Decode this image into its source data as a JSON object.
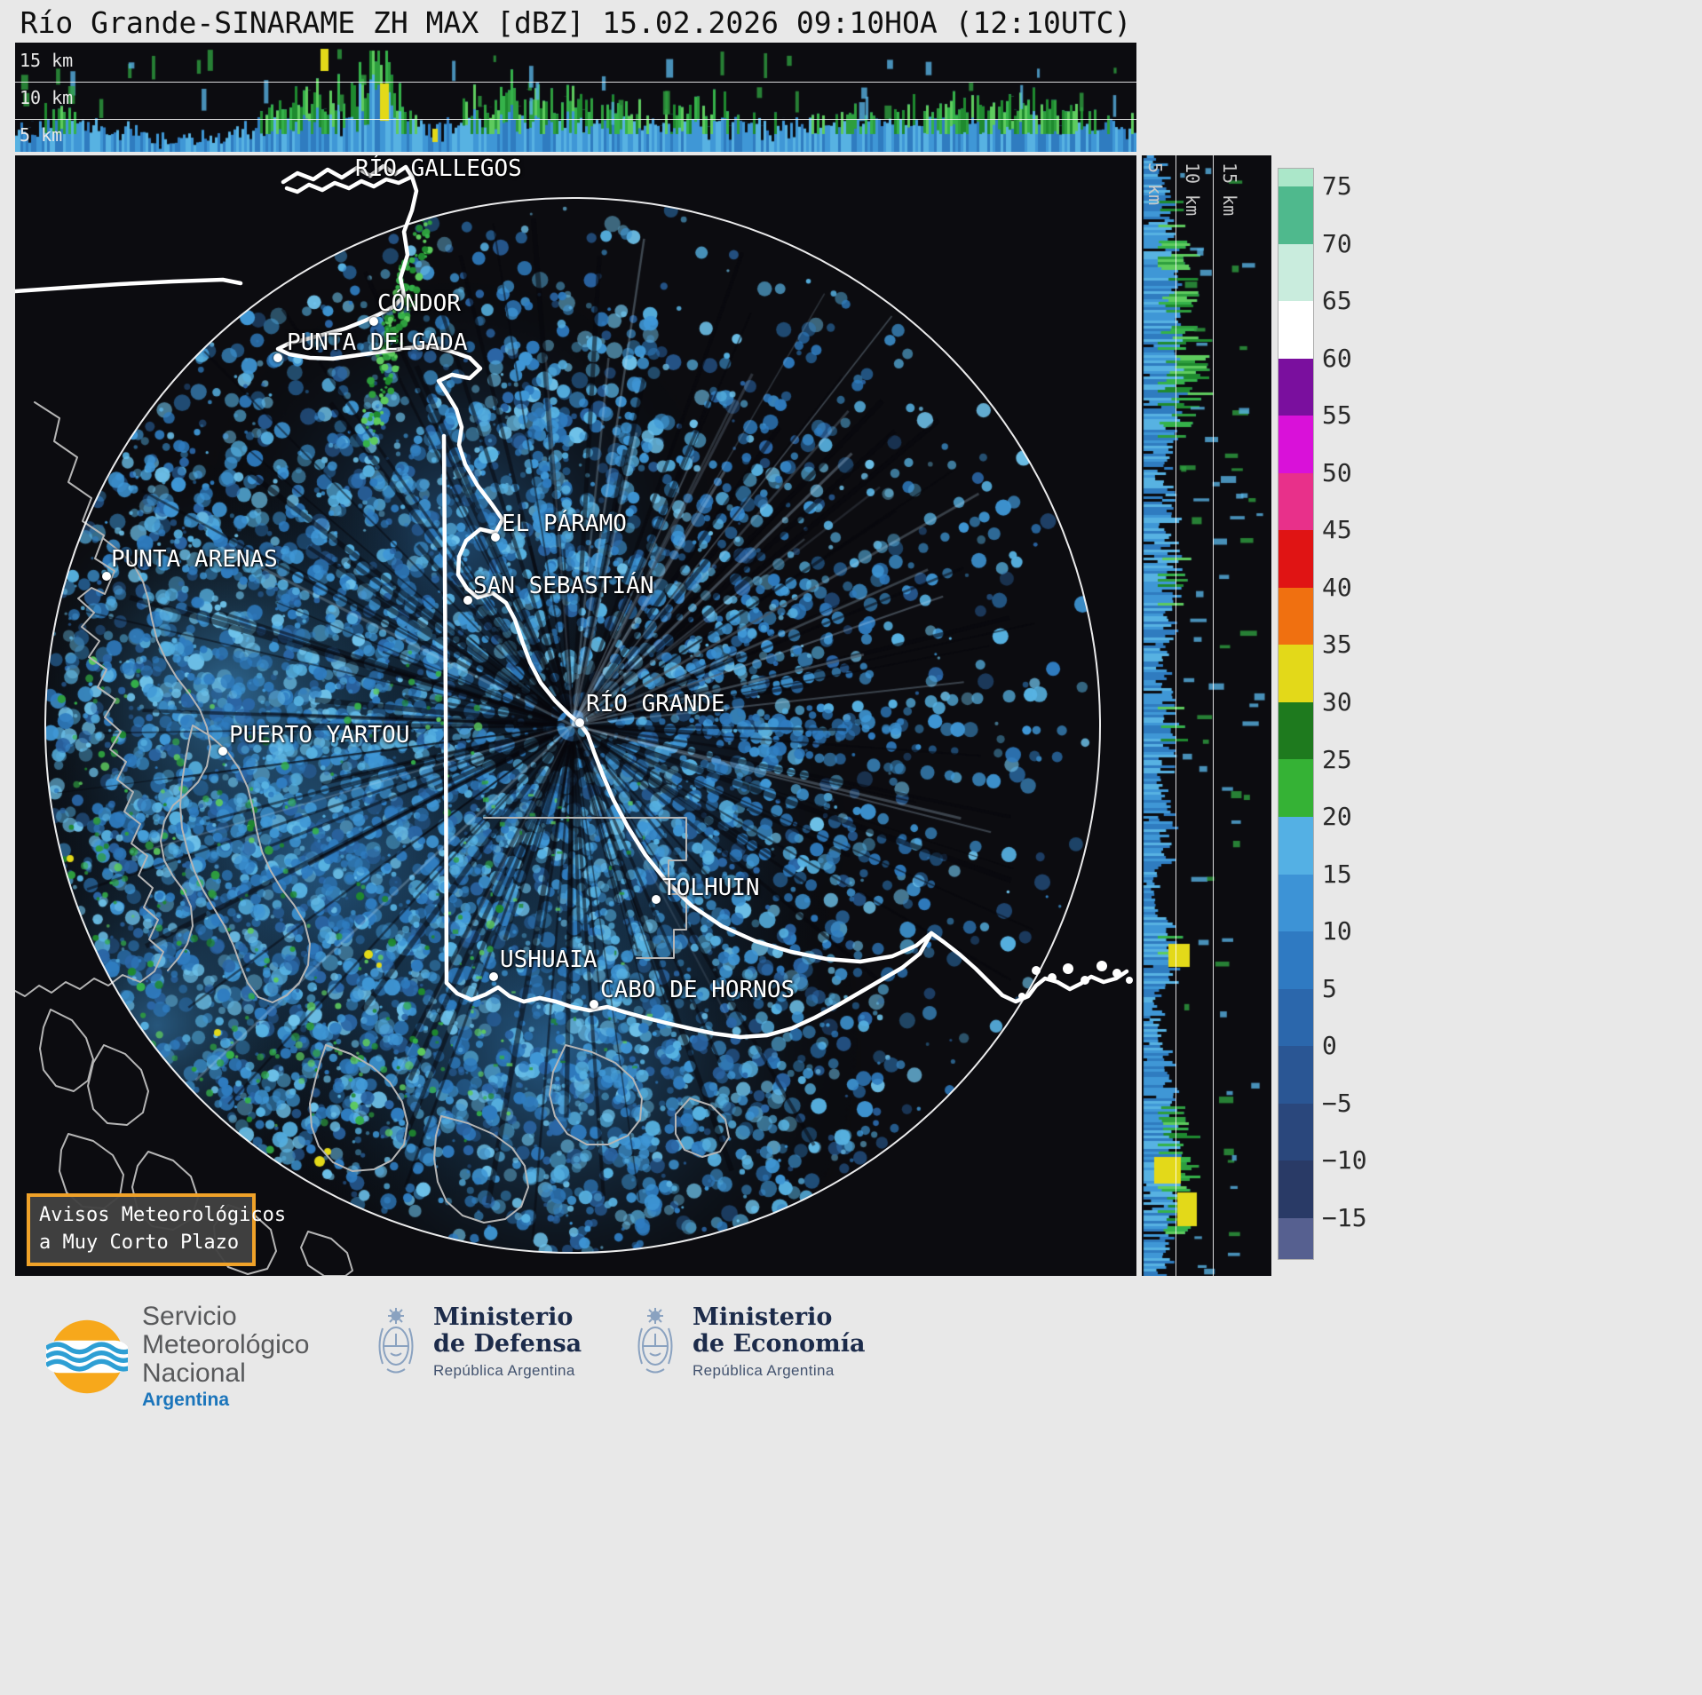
{
  "title": "Río Grande-SINARAME ZH MAX [dBZ] 15.02.2026 09:10HOA (12:10UTC)",
  "top_panel": {
    "labels": [
      "15 km",
      "10 km",
      "5 km"
    ]
  },
  "right_panel": {
    "labels": [
      "5 km",
      "10 km",
      "15 km"
    ]
  },
  "map": {
    "cities": [
      {
        "name": "RÍO GALLEGOS"
      },
      {
        "name": "CÓNDOR"
      },
      {
        "name": "PUNTA DELGADA"
      },
      {
        "name": "EL PÁRAMO"
      },
      {
        "name": "SAN SEBASTIÁN"
      },
      {
        "name": "PUNTA ARENAS"
      },
      {
        "name": "RÍO GRANDE"
      },
      {
        "name": "PUERTO YARTOU"
      },
      {
        "name": "TOLHUIN"
      },
      {
        "name": "USHUAIA"
      },
      {
        "name": "CABO DE HORNOS"
      }
    ]
  },
  "colorbar": {
    "ticks": [
      "75",
      "70",
      "65",
      "60",
      "55",
      "50",
      "45",
      "40",
      "35",
      "30",
      "25",
      "20",
      "15",
      "10",
      "5",
      "0",
      "−5",
      "−10",
      "−15"
    ],
    "segments": [
      "#abe7c9",
      "#4fb98d",
      "#c9ecdd",
      "#ffffff",
      "#7a0f9e",
      "#d911d9",
      "#e8308a",
      "#e01414",
      "#f07010",
      "#e3d919",
      "#1e7a1e",
      "#35b235",
      "#54b0e4",
      "#3d93d6",
      "#2f7ac2",
      "#2b67ac",
      "#2a5694",
      "#2a477c",
      "#293a66",
      "#566090"
    ]
  },
  "alert_box": {
    "line1": "Avisos Meteorológicos",
    "line2": "a Muy Corto Plazo",
    "border_color": "#f0a229"
  },
  "echo_colors": {
    "background": "#0c0c10",
    "blues": [
      "#57b2e2",
      "#3f97d6",
      "#2f7cc0",
      "#2b66a6",
      "#6ec2ea"
    ],
    "greens": [
      "#35b24a",
      "#2e9e3e",
      "#5ecb5e",
      "#1f8a2f"
    ],
    "yellow": "#e3d919"
  },
  "footer": {
    "smn": {
      "line1": "Servicio",
      "line2": "Meteorológico",
      "line3": "Nacional",
      "country": "Argentina"
    },
    "defensa": {
      "line1": "Ministerio",
      "line2": "de Defensa",
      "subtitle": "República Argentina"
    },
    "economia": {
      "line1": "Ministerio",
      "line2": "de Economía",
      "subtitle": "República Argentina"
    }
  }
}
